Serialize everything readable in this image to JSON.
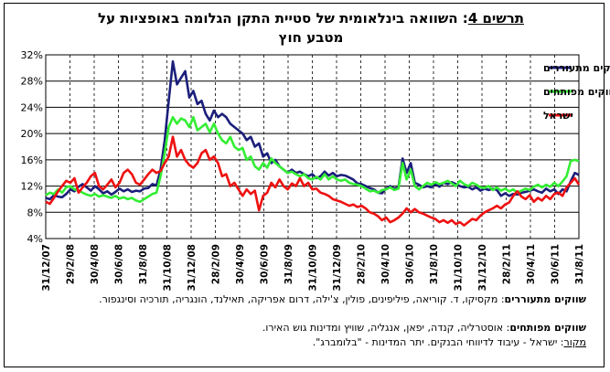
{
  "title_prefix": "תרשים 4",
  "title_rest": ": השוואה בינלאומית של סטיית התקן הגלומה באופציות על",
  "title_line2": "מטבע חוץ",
  "notes": {
    "emerging_label": "שווקים מתעוררים",
    "emerging_text": ": מקסיקו, ד. קוריאה, פיליפינים, פולין, צ'ילה, דרום אפריקה, תאילנד, הונגריה, תורכיה וסינגפור.",
    "developed_label": "שווקים מפותחים",
    "developed_text": ": אוסטרליה, קנדה, יפאן, אנגליה, שוויץ ומדינות גוש האירו.",
    "source_label": "מקור",
    "source_text": ": ישראל - עיבוד לדיווחי הבנקים. יתר המדינות - \"בלומברג\"."
  },
  "chart_data": {
    "type": "line",
    "ylim": [
      4,
      32
    ],
    "yticks": [
      "4%",
      "8%",
      "12%",
      "16%",
      "20%",
      "24%",
      "28%",
      "32%"
    ],
    "x_labels": [
      "31/12/07",
      "29/2/08",
      "30/4/08",
      "30/6/08",
      "31/8/08",
      "31/10/08",
      "31/12/08",
      "28/2/09",
      "30/4/09",
      "30/6/09",
      "31/8/09",
      "31/10/09",
      "31/12/09",
      "28/2/10",
      "30/4/10",
      "30/6/10",
      "31/8/10",
      "31/10/10",
      "31/12/10",
      "28/2/11",
      "30/4/11",
      "30/6/11",
      "31/8/11"
    ],
    "grid": "vertical-dashed",
    "legend_position": "top-right",
    "series": [
      {
        "name": "ממוצע שווקים מתעוררים",
        "color": "#1b1f7a",
        "values": [
          10.2,
          10.0,
          10.6,
          10.4,
          10.3,
          10.8,
          11.5,
          11.2,
          11.9,
          12.3,
          11.8,
          11.3,
          12.0,
          11.5,
          10.9,
          11.2,
          10.7,
          11.1,
          11.6,
          11.2,
          11.5,
          11.1,
          11.3,
          11.2,
          11.6,
          11.7,
          12.3,
          12.1,
          14.5,
          19.0,
          25.0,
          31.0,
          27.5,
          28.5,
          29.5,
          25.5,
          26.5,
          24.5,
          25.0,
          23.0,
          22.0,
          23.5,
          22.5,
          23.0,
          22.5,
          21.5,
          21.0,
          20.5,
          20.0,
          19.0,
          19.5,
          18.0,
          18.5,
          16.5,
          17.0,
          15.5,
          16.0,
          15.0,
          14.5,
          14.0,
          14.5,
          14.0,
          14.2,
          13.8,
          13.5,
          13.8,
          13.2,
          13.5,
          14.2,
          13.6,
          14.0,
          13.5,
          13.7,
          13.6,
          13.3,
          13.0,
          12.4,
          12.3,
          12.0,
          11.7,
          11.5,
          11.0,
          10.9,
          11.6,
          12.0,
          11.6,
          11.8,
          16.2,
          14.0,
          15.5,
          12.5,
          12.2,
          11.8,
          12.0,
          11.8,
          12.3,
          11.9,
          12.5,
          12.3,
          12.6,
          12.3,
          12.0,
          11.8,
          11.9,
          11.5,
          11.8,
          11.3,
          11.6,
          11.4,
          11.6,
          11.4,
          10.5,
          10.9,
          10.5,
          10.8,
          10.7,
          11.0,
          11.1,
          11.3,
          11.5,
          11.2,
          11.0,
          11.6,
          11.2,
          11.5,
          10.8,
          11.5,
          11.2,
          12.7,
          14.0,
          13.7
        ]
      },
      {
        "name": "ממוצע שווקים מפותחים",
        "color": "#33ee33",
        "values": [
          10.6,
          11.0,
          10.8,
          11.5,
          11.0,
          11.8,
          12.0,
          11.5,
          11.3,
          11.0,
          10.7,
          10.5,
          10.8,
          10.4,
          10.6,
          10.4,
          10.2,
          10.5,
          10.1,
          10.3,
          10.0,
          10.2,
          9.8,
          9.6,
          10.0,
          10.4,
          10.8,
          11.0,
          13.5,
          17.0,
          21.0,
          22.5,
          21.5,
          22.3,
          22.0,
          21.0,
          22.5,
          20.5,
          21.0,
          21.5,
          20.2,
          21.5,
          20.0,
          19.0,
          18.5,
          19.5,
          18.0,
          17.5,
          17.8,
          16.0,
          16.5,
          15.0,
          14.5,
          15.5,
          14.8,
          16.2,
          15.5,
          15.0,
          14.5,
          14.0,
          14.2,
          13.8,
          13.5,
          13.8,
          13.2,
          13.0,
          13.4,
          13.0,
          13.8,
          13.0,
          13.5,
          13.0,
          12.8,
          13.0,
          12.5,
          12.3,
          12.2,
          12.0,
          11.6,
          11.2,
          11.3,
          11.0,
          11.4,
          11.5,
          11.8,
          11.4,
          11.6,
          15.5,
          13.0,
          14.5,
          12.0,
          11.5,
          12.0,
          12.5,
          12.2,
          12.6,
          12.3,
          12.5,
          12.8,
          12.4,
          12.0,
          12.8,
          12.3,
          12.0,
          12.5,
          12.2,
          11.8,
          11.7,
          12.0,
          11.4,
          11.8,
          11.3,
          11.6,
          11.2,
          11.5,
          11.0,
          11.3,
          11.6,
          11.4,
          11.9,
          12.2,
          11.8,
          12.2,
          11.9,
          12.5,
          12.0,
          12.7,
          13.5,
          15.8,
          16.0,
          15.8
        ]
      },
      {
        "name": "ישראל",
        "color": "#ee1111",
        "values": [
          9.6,
          9.3,
          10.2,
          11.2,
          12.0,
          12.8,
          12.5,
          13.2,
          11.0,
          11.8,
          12.5,
          13.5,
          14.0,
          12.0,
          11.5,
          12.2,
          13.0,
          11.8,
          12.5,
          14.0,
          14.5,
          13.8,
          12.5,
          12.2,
          13.0,
          13.8,
          14.5,
          14.0,
          14.3,
          15.5,
          16.5,
          19.5,
          16.5,
          17.5,
          16.0,
          15.2,
          14.8,
          15.5,
          17.0,
          17.5,
          16.0,
          16.5,
          15.5,
          13.5,
          13.8,
          12.0,
          12.5,
          11.5,
          10.5,
          11.5,
          10.8,
          11.3,
          8.3,
          10.5,
          11.0,
          12.5,
          11.8,
          13.0,
          12.0,
          11.5,
          12.4,
          12.0,
          13.2,
          12.0,
          12.5,
          11.5,
          11.6,
          11.0,
          10.8,
          10.5,
          10.0,
          9.8,
          9.6,
          9.3,
          9.0,
          9.2,
          8.8,
          9.0,
          8.6,
          8.0,
          7.8,
          7.4,
          6.8,
          7.2,
          6.5,
          6.8,
          7.2,
          7.8,
          8.6,
          8.0,
          8.5,
          8.0,
          7.8,
          7.5,
          7.2,
          7.0,
          6.5,
          6.8,
          6.4,
          6.8,
          6.2,
          6.5,
          6.0,
          6.5,
          7.0,
          6.8,
          7.5,
          8.0,
          8.3,
          8.6,
          9.0,
          8.6,
          9.2,
          9.5,
          10.5,
          11.2,
          10.4,
          10.0,
          10.6,
          9.6,
          10.2,
          9.8,
          10.5,
          10.0,
          10.8,
          11.0,
          10.5,
          11.8,
          12.5,
          13.2,
          12.2
        ]
      }
    ]
  }
}
